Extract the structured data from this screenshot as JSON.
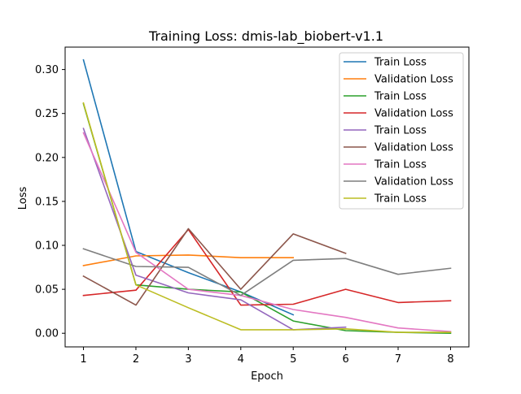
{
  "chart_data": {
    "type": "line",
    "title": "Training Loss: dmis-lab_biobert-v1.1",
    "xlabel": "Epoch",
    "ylabel": "Loss",
    "xlim": [
      0.65,
      8.35
    ],
    "ylim": [
      -0.0155,
      0.3255
    ],
    "x_ticks": [
      1,
      2,
      3,
      4,
      5,
      6,
      7,
      8
    ],
    "y_ticks": [
      0.0,
      0.05,
      0.1,
      0.15,
      0.2,
      0.25,
      0.3
    ],
    "y_tick_labels": [
      "0.00",
      "0.05",
      "0.10",
      "0.15",
      "0.20",
      "0.25",
      "0.30"
    ],
    "grid": false,
    "legend_position": "upper right",
    "series": [
      {
        "name": "Train Loss",
        "color": "#1f77b4",
        "x": [
          1,
          2,
          3,
          4,
          5
        ],
        "y": [
          0.311,
          0.093,
          0.069,
          0.047,
          0.021
        ]
      },
      {
        "name": "Validation Loss",
        "color": "#ff7f0e",
        "x": [
          1,
          2,
          3,
          4,
          5
        ],
        "y": [
          0.077,
          0.088,
          0.089,
          0.086,
          0.086
        ]
      },
      {
        "name": "Train Loss",
        "color": "#2ca02c",
        "x": [
          1,
          2,
          3,
          4,
          5,
          6,
          7,
          8
        ],
        "y": [
          0.261,
          0.055,
          0.05,
          0.047,
          0.014,
          0.003,
          0.001,
          0.0
        ]
      },
      {
        "name": "Validation Loss",
        "color": "#d62728",
        "x": [
          1,
          2,
          3,
          4,
          5,
          6,
          7,
          8
        ],
        "y": [
          0.043,
          0.049,
          0.118,
          0.032,
          0.033,
          0.05,
          0.035,
          0.037
        ]
      },
      {
        "name": "Train Loss",
        "color": "#9467bd",
        "x": [
          1,
          2,
          3,
          4,
          5,
          6
        ],
        "y": [
          0.233,
          0.066,
          0.046,
          0.038,
          0.004,
          0.007
        ]
      },
      {
        "name": "Validation Loss",
        "color": "#8c564b",
        "x": [
          1,
          2,
          3,
          4,
          5,
          6
        ],
        "y": [
          0.065,
          0.032,
          0.119,
          0.05,
          0.113,
          0.091
        ]
      },
      {
        "name": "Train Loss",
        "color": "#e377c2",
        "x": [
          1,
          2,
          3,
          4,
          5,
          6,
          7,
          8
        ],
        "y": [
          0.228,
          0.092,
          0.05,
          0.043,
          0.027,
          0.018,
          0.006,
          0.002
        ]
      },
      {
        "name": "Validation Loss",
        "color": "#7f7f7f",
        "x": [
          1,
          2,
          3,
          4,
          5,
          6,
          7,
          8
        ],
        "y": [
          0.096,
          0.076,
          0.075,
          0.043,
          0.083,
          0.085,
          0.067,
          0.074
        ]
      },
      {
        "name": "Train Loss",
        "color": "#bcbd22",
        "x": [
          1,
          2,
          3,
          4,
          5,
          6,
          7,
          8
        ],
        "y": [
          0.262,
          0.055,
          0.029,
          0.004,
          0.004,
          0.005,
          0.001,
          0.001
        ]
      }
    ]
  }
}
